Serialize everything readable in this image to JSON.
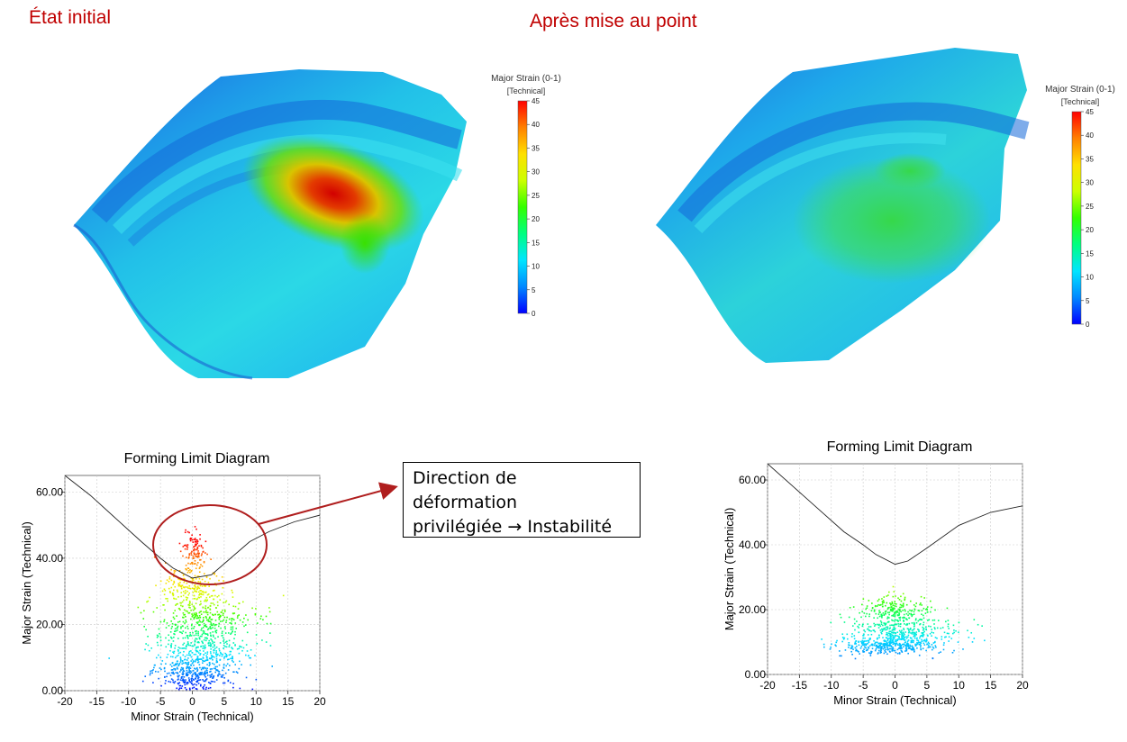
{
  "panels": {
    "left_title": "État initial",
    "right_title": "Après mise au point"
  },
  "colors": {
    "title_red": "#c00000",
    "annotation_red": "#b01e1e",
    "scale": [
      "#0000ff",
      "#0088ff",
      "#00e5ff",
      "#00ff80",
      "#33ff00",
      "#ccff00",
      "#ffe000",
      "#ff8000",
      "#ff0000"
    ]
  },
  "legend": {
    "title": "Major Strain  (0-1)",
    "unit": "[Technical]",
    "ticks": [
      45,
      40,
      35,
      30,
      25,
      20,
      15,
      10,
      5,
      0
    ],
    "range": [
      0,
      45
    ]
  },
  "annotation": {
    "line1": "Direction de",
    "line2": "déformation",
    "line3": "privilégiée → Instabilité"
  },
  "chart_data": [
    {
      "type": "scatter",
      "title": "Forming Limit Diagram",
      "xlabel": "Minor Strain (Technical)",
      "ylabel": "Major Strain (Technical)",
      "xlim": [
        -20,
        20
      ],
      "ylim": [
        0,
        65
      ],
      "xticks": [
        -20,
        -15,
        -10,
        -5,
        0,
        5,
        10,
        15,
        20
      ],
      "yticks": [
        "0.00",
        "20.00",
        "40.00",
        "60.00"
      ],
      "grid": true,
      "flc": {
        "x": [
          -20,
          -16,
          -12,
          -8,
          -5,
          -3,
          0,
          3,
          6,
          9,
          12,
          16,
          20
        ],
        "y": [
          65,
          59,
          52,
          45,
          40,
          37,
          34,
          35,
          40,
          45,
          48,
          51,
          53
        ]
      },
      "points": {
        "clusters": [
          {
            "cx": 0,
            "cy": 5,
            "sx": 3,
            "sy": 2.5,
            "n": 320
          },
          {
            "cx": 1.5,
            "cy": 12,
            "sx": 4,
            "sy": 3,
            "n": 320
          },
          {
            "cx": 2,
            "cy": 21,
            "sx": 4,
            "sy": 4,
            "n": 360
          },
          {
            "cx": -0.5,
            "cy": 31,
            "sx": 2.5,
            "sy": 3.5,
            "n": 220
          },
          {
            "cx": 0,
            "cy": 42,
            "sx": 0.9,
            "sy": 3,
            "n": 110
          }
        ],
        "color_range": [
          0,
          45
        ]
      }
    },
    {
      "type": "scatter",
      "title": "Forming Limit Diagram",
      "xlabel": "Minor Strain (Technical)",
      "ylabel": "Major Strain (Technical)",
      "xlim": [
        -20,
        20
      ],
      "ylim": [
        0,
        65
      ],
      "xticks": [
        -20,
        -15,
        -10,
        -5,
        0,
        5,
        10,
        15,
        20
      ],
      "yticks": [
        "0.00",
        "20.00",
        "40.00",
        "60.00"
      ],
      "grid": true,
      "flc": {
        "x": [
          -20,
          -16,
          -12,
          -8,
          -5,
          -3,
          0,
          2,
          5,
          10,
          15,
          20
        ],
        "y": [
          65,
          58,
          51,
          44,
          40,
          37,
          34,
          35,
          39,
          46,
          50,
          52
        ]
      },
      "points": {
        "clusters": [
          {
            "cx": -1,
            "cy": 9,
            "sx": 4,
            "sy": 1.3,
            "n": 320
          },
          {
            "cx": 1,
            "cy": 13,
            "sx": 4.2,
            "sy": 2.5,
            "n": 380
          },
          {
            "cx": 0.5,
            "cy": 20,
            "sx": 3,
            "sy": 2.3,
            "n": 220
          }
        ],
        "color_range": [
          0,
          45
        ]
      }
    }
  ]
}
